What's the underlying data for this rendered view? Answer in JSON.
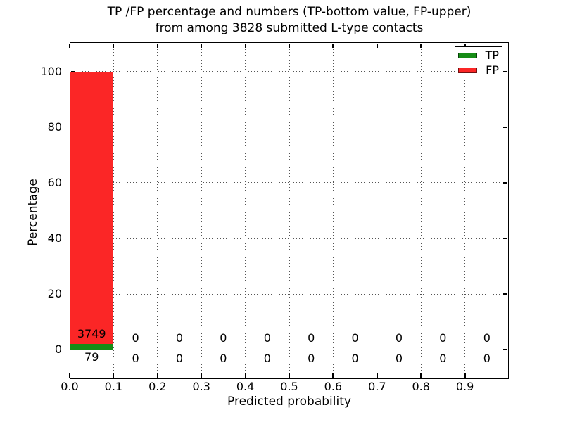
{
  "figure": {
    "title": "TP /FP percentage and numbers (TP-bottom value, FP-upper)\nfrom among 3828 submitted L-type contacts",
    "xlabel": "Predicted probability",
    "ylabel": "Percentage"
  },
  "axes": {
    "x_ticks": [
      "0.0",
      "0.1",
      "0.2",
      "0.3",
      "0.4",
      "0.5",
      "0.6",
      "0.7",
      "0.8",
      "0.9"
    ],
    "y_ticks": [
      "0",
      "20",
      "40",
      "60",
      "80",
      "100"
    ]
  },
  "legend": {
    "items": [
      {
        "label": "TP",
        "color": "#168c16"
      },
      {
        "label": "FP",
        "color": "#fb2626"
      }
    ]
  },
  "colors": {
    "tp_green": "#168c16",
    "fp_red": "#fb2626",
    "axis_black": "#000000"
  },
  "chart_data": {
    "type": "bar",
    "stacked": true,
    "title": "TP /FP percentage and numbers (TP-bottom value, FP-upper) from among 3828 submitted L-type contacts",
    "xlabel": "Predicted probability",
    "ylabel": "Percentage",
    "total_contacts": 3828,
    "bin_width": 0.1,
    "bin_starts": [
      0.0,
      0.1,
      0.2,
      0.3,
      0.4,
      0.5,
      0.6,
      0.7,
      0.8,
      0.9
    ],
    "bin_centers": [
      0.05,
      0.15,
      0.25,
      0.35,
      0.45,
      0.55,
      0.65,
      0.75,
      0.85,
      0.95
    ],
    "series": [
      {
        "name": "TP",
        "color": "#168c16",
        "counts": [
          79,
          0,
          0,
          0,
          0,
          0,
          0,
          0,
          0,
          0
        ]
      },
      {
        "name": "FP",
        "color": "#fb2626",
        "counts": [
          3749,
          0,
          0,
          0,
          0,
          0,
          0,
          0,
          0,
          0
        ]
      }
    ],
    "value_unit": "percent of total (count/3828*100)",
    "xlim": [
      0.0,
      1.0
    ],
    "ylim": [
      -10.5,
      110.5
    ],
    "grid": true,
    "grid_style": "dotted",
    "legend_position": "upper right"
  }
}
